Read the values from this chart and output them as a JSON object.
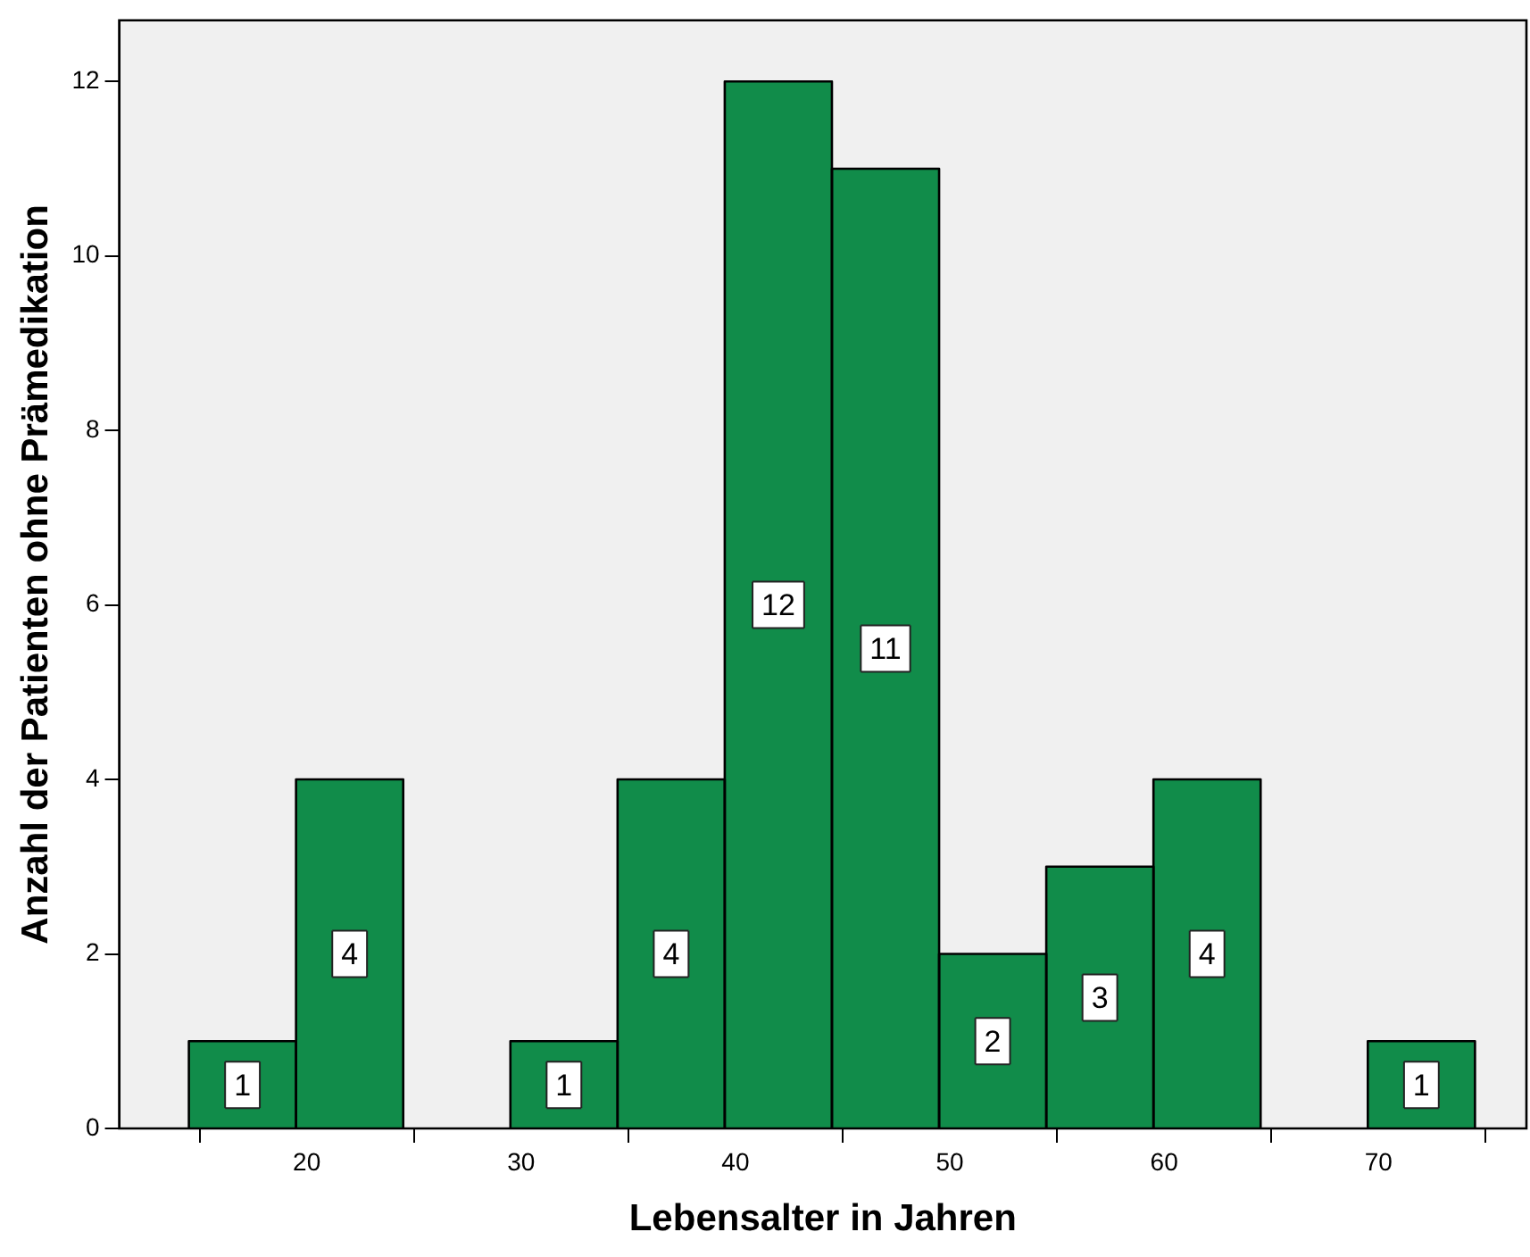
{
  "chart_data": {
    "type": "histogram",
    "xlabel": "Lebensalter in Jahren",
    "ylabel": "Anzahl der Patienten ohne Prämedikation",
    "bins": [
      14.5,
      19.5,
      24.5,
      29.5,
      34.5,
      39.5,
      44.5,
      49.5,
      54.5,
      59.5,
      64.5,
      69.5,
      74.5
    ],
    "values": [
      1,
      4,
      0,
      1,
      4,
      12,
      11,
      2,
      3,
      4,
      0,
      1
    ],
    "value_labels": [
      "1",
      "4",
      null,
      "1",
      "4",
      "12",
      "11",
      "2",
      "3",
      "4",
      null,
      "1"
    ],
    "color": "#118c4a",
    "xlim": [
      11.25,
      76.9
    ],
    "xticks": [
      20,
      30,
      40,
      50,
      60,
      70
    ],
    "ylim": [
      0,
      12.7
    ],
    "yticks": [
      0,
      2,
      4,
      6,
      8,
      10,
      12
    ],
    "grid": false,
    "legend": false
  }
}
